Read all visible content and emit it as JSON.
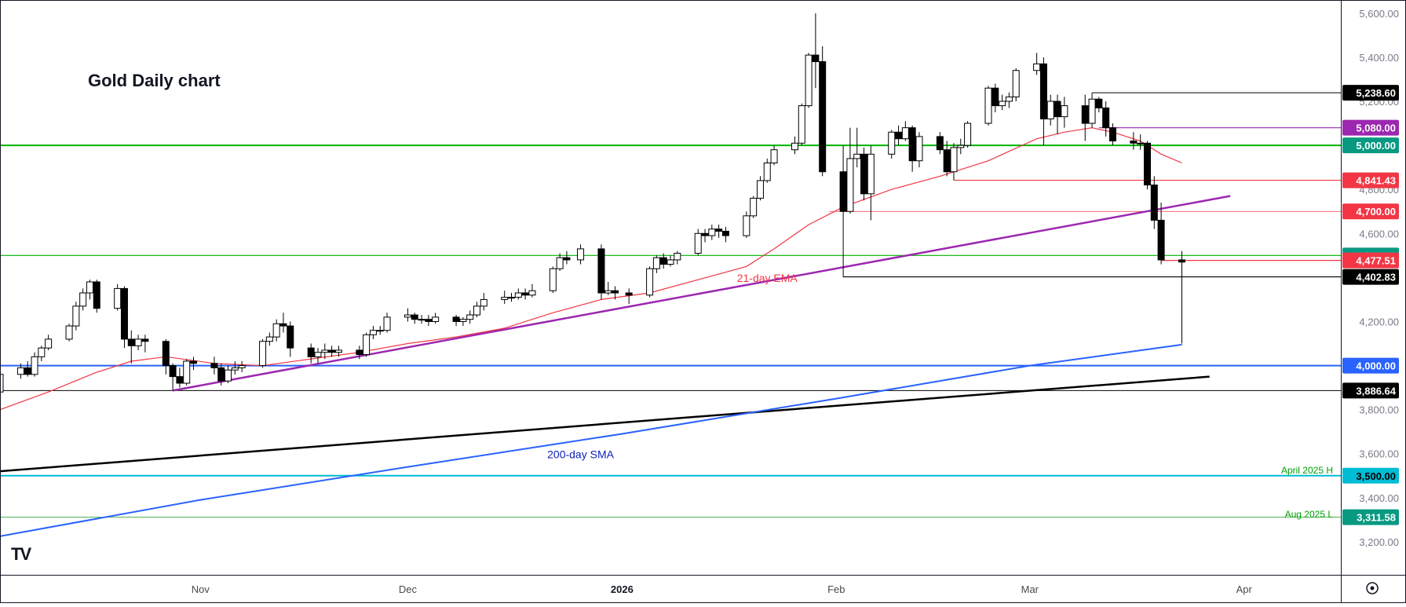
{
  "chart_data": {
    "type": "candlestick",
    "title": "Gold Daily chart",
    "y_axis": {
      "position": "right",
      "ylim": [
        3050,
        5660
      ],
      "ticks": [
        {
          "value": 3200,
          "label": "3,200.00"
        },
        {
          "value": 3400,
          "label": "3,400.00"
        },
        {
          "value": 3600,
          "label": "3,600.00"
        },
        {
          "value": 3800,
          "label": "3,800.00"
        },
        {
          "value": 4000,
          "label": "4,000.00"
        },
        {
          "value": 4200,
          "label": "4,200.00"
        },
        {
          "value": 4400,
          "label": "4,400.00"
        },
        {
          "value": 4600,
          "label": "4,600.00"
        },
        {
          "value": 4800,
          "label": "4,800.00"
        },
        {
          "value": 5000,
          "label": "5,000.00"
        },
        {
          "value": 5200,
          "label": "5,200.00"
        },
        {
          "value": 5400,
          "label": "5,400.00"
        },
        {
          "value": 5600,
          "label": "5,600.00"
        }
      ]
    },
    "x_axis": {
      "xlim": [
        "2025-10-03",
        "2026-04-15"
      ],
      "ticks": [
        {
          "date": "2025-11-01",
          "label": "Nov",
          "bold": false
        },
        {
          "date": "2025-12-01",
          "label": "Dec",
          "bold": false
        },
        {
          "date": "2026-01-01",
          "label": "2026",
          "bold": true
        },
        {
          "date": "2026-02-01",
          "label": "Feb",
          "bold": false
        },
        {
          "date": "2026-03-01",
          "label": "Mar",
          "bold": false
        },
        {
          "date": "2026-04-01",
          "label": "Apr",
          "bold": false
        }
      ]
    },
    "grid": false,
    "legend": "none",
    "candles": [
      [
        "2025-10-03",
        3880,
        3960,
        3870,
        3985
      ],
      [
        "2025-10-06",
        3960,
        3990,
        3940,
        4010
      ],
      [
        "2025-10-07",
        3990,
        3960,
        3950,
        4020
      ],
      [
        "2025-10-08",
        3960,
        4040,
        3950,
        4060
      ],
      [
        "2025-10-09",
        4040,
        4080,
        4020,
        4090
      ],
      [
        "2025-10-10",
        4080,
        4120,
        4070,
        4140
      ],
      [
        "2025-10-13",
        4120,
        4180,
        4110,
        4190
      ],
      [
        "2025-10-14",
        4180,
        4270,
        4160,
        4290
      ],
      [
        "2025-10-15",
        4270,
        4330,
        4250,
        4350
      ],
      [
        "2025-10-16",
        4330,
        4380,
        4300,
        4390
      ],
      [
        "2025-10-17",
        4380,
        4260,
        4240,
        4390
      ],
      [
        "2025-10-20",
        4260,
        4350,
        4250,
        4370
      ],
      [
        "2025-10-21",
        4350,
        4120,
        4080,
        4360
      ],
      [
        "2025-10-22",
        4120,
        4090,
        4010,
        4160
      ],
      [
        "2025-10-23",
        4090,
        4120,
        4070,
        4140
      ],
      [
        "2025-10-24",
        4120,
        4110,
        4060,
        4140
      ],
      [
        "2025-10-27",
        4110,
        4000,
        3960,
        4120
      ],
      [
        "2025-10-28",
        4000,
        3950,
        3886,
        4010
      ],
      [
        "2025-10-29",
        3950,
        3920,
        3900,
        3990
      ],
      [
        "2025-10-30",
        3920,
        4020,
        3910,
        4030
      ],
      [
        "2025-10-31",
        4020,
        4010,
        3980,
        4040
      ],
      [
        "2025-11-03",
        4010,
        3990,
        3960,
        4040
      ],
      [
        "2025-11-04",
        3990,
        3930,
        3910,
        4010
      ],
      [
        "2025-11-05",
        3930,
        3980,
        3920,
        4000
      ],
      [
        "2025-11-06",
        3980,
        3990,
        3960,
        4020
      ],
      [
        "2025-11-07",
        3990,
        4000,
        3970,
        4020
      ],
      [
        "2025-11-10",
        4000,
        4110,
        3990,
        4120
      ],
      [
        "2025-11-11",
        4110,
        4130,
        4090,
        4150
      ],
      [
        "2025-11-12",
        4130,
        4190,
        4110,
        4210
      ],
      [
        "2025-11-13",
        4190,
        4180,
        4150,
        4240
      ],
      [
        "2025-11-14",
        4180,
        4080,
        4040,
        4200
      ],
      [
        "2025-11-17",
        4080,
        4040,
        4010,
        4100
      ],
      [
        "2025-11-18",
        4040,
        4060,
        4010,
        4080
      ],
      [
        "2025-11-19",
        4060,
        4070,
        4030,
        4100
      ],
      [
        "2025-11-20",
        4070,
        4060,
        4040,
        4090
      ],
      [
        "2025-11-21",
        4060,
        4070,
        4040,
        4090
      ],
      [
        "2025-11-24",
        4070,
        4050,
        4030,
        4090
      ],
      [
        "2025-11-25",
        4050,
        4140,
        4040,
        4150
      ],
      [
        "2025-11-26",
        4140,
        4160,
        4120,
        4180
      ],
      [
        "2025-11-27",
        4160,
        4160,
        4140,
        4180
      ],
      [
        "2025-11-28",
        4160,
        4220,
        4150,
        4240
      ],
      [
        "2025-12-01",
        4220,
        4230,
        4200,
        4260
      ],
      [
        "2025-12-02",
        4230,
        4210,
        4190,
        4240
      ],
      [
        "2025-12-03",
        4210,
        4210,
        4190,
        4230
      ],
      [
        "2025-12-04",
        4210,
        4200,
        4180,
        4230
      ],
      [
        "2025-12-05",
        4200,
        4220,
        4190,
        4240
      ],
      [
        "2025-12-08",
        4220,
        4200,
        4180,
        4230
      ],
      [
        "2025-12-09",
        4200,
        4210,
        4180,
        4220
      ],
      [
        "2025-12-10",
        4210,
        4230,
        4190,
        4250
      ],
      [
        "2025-12-11",
        4230,
        4270,
        4220,
        4290
      ],
      [
        "2025-12-12",
        4270,
        4300,
        4250,
        4330
      ],
      [
        "2025-12-15",
        4300,
        4310,
        4280,
        4340
      ],
      [
        "2025-12-16",
        4310,
        4310,
        4290,
        4330
      ],
      [
        "2025-12-17",
        4310,
        4330,
        4300,
        4350
      ],
      [
        "2025-12-18",
        4330,
        4320,
        4300,
        4350
      ],
      [
        "2025-12-19",
        4320,
        4340,
        4310,
        4370
      ],
      [
        "2025-12-22",
        4340,
        4440,
        4330,
        4450
      ],
      [
        "2025-12-23",
        4440,
        4490,
        4430,
        4510
      ],
      [
        "2025-12-24",
        4490,
        4480,
        4460,
        4520
      ],
      [
        "2025-12-26",
        4480,
        4530,
        4460,
        4550
      ],
      [
        "2025-12-29",
        4530,
        4330,
        4300,
        4550
      ],
      [
        "2025-12-30",
        4330,
        4340,
        4320,
        4380
      ],
      [
        "2025-12-31",
        4340,
        4330,
        4300,
        4360
      ],
      [
        "2026-01-02",
        4330,
        4320,
        4280,
        4350
      ],
      [
        "2026-01-05",
        4320,
        4440,
        4310,
        4450
      ],
      [
        "2026-01-06",
        4440,
        4490,
        4420,
        4500
      ],
      [
        "2026-01-07",
        4490,
        4460,
        4440,
        4510
      ],
      [
        "2026-01-08",
        4460,
        4480,
        4450,
        4500
      ],
      [
        "2026-01-09",
        4480,
        4510,
        4460,
        4520
      ],
      [
        "2026-01-12",
        4510,
        4600,
        4500,
        4620
      ],
      [
        "2026-01-13",
        4600,
        4590,
        4560,
        4620
      ],
      [
        "2026-01-14",
        4590,
        4620,
        4570,
        4640
      ],
      [
        "2026-01-15",
        4620,
        4610,
        4580,
        4640
      ],
      [
        "2026-01-16",
        4610,
        4590,
        4560,
        4630
      ],
      [
        "2026-01-19",
        4590,
        4680,
        4580,
        4700
      ],
      [
        "2026-01-20",
        4680,
        4760,
        4670,
        4770
      ],
      [
        "2026-01-21",
        4760,
        4840,
        4750,
        4860
      ],
      [
        "2026-01-22",
        4840,
        4920,
        4830,
        4940
      ],
      [
        "2026-01-23",
        4920,
        4980,
        4910,
        5000
      ],
      [
        "2026-01-26",
        4980,
        5010,
        4960,
        5040
      ],
      [
        "2026-01-27",
        5010,
        5180,
        5000,
        5190
      ],
      [
        "2026-01-28",
        5180,
        5410,
        5170,
        5420
      ],
      [
        "2026-01-29",
        5410,
        5380,
        5260,
        5600
      ],
      [
        "2026-01-30",
        5380,
        4880,
        4860,
        5450
      ],
      [
        "2026-02-02",
        4880,
        4700,
        4402,
        5000
      ],
      [
        "2026-02-03",
        4700,
        4940,
        4690,
        5080
      ],
      [
        "2026-02-04",
        4940,
        4960,
        4900,
        5080
      ],
      [
        "2026-02-05",
        4960,
        4780,
        4750,
        4990
      ],
      [
        "2026-02-06",
        4780,
        4960,
        4660,
        5000
      ],
      [
        "2026-02-09",
        4960,
        5060,
        4940,
        5070
      ],
      [
        "2026-02-10",
        5060,
        5030,
        5000,
        5090
      ],
      [
        "2026-02-11",
        5030,
        5080,
        5020,
        5110
      ],
      [
        "2026-02-12",
        5080,
        4930,
        4880,
        5090
      ],
      [
        "2026-02-13",
        4930,
        5040,
        4900,
        5060
      ],
      [
        "2026-02-16",
        5040,
        4980,
        4960,
        5060
      ],
      [
        "2026-02-17",
        4980,
        4880,
        4860,
        5020
      ],
      [
        "2026-02-18",
        4880,
        4990,
        4841,
        5010
      ],
      [
        "2026-02-19",
        4990,
        5000,
        4960,
        5030
      ],
      [
        "2026-02-20",
        5000,
        5100,
        4990,
        5110
      ],
      [
        "2026-02-23",
        5100,
        5260,
        5090,
        5270
      ],
      [
        "2026-02-24",
        5260,
        5180,
        5150,
        5280
      ],
      [
        "2026-02-25",
        5180,
        5200,
        5160,
        5230
      ],
      [
        "2026-02-26",
        5200,
        5220,
        5170,
        5240
      ],
      [
        "2026-02-27",
        5220,
        5340,
        5200,
        5350
      ],
      [
        "2026-03-02",
        5340,
        5370,
        5320,
        5420
      ],
      [
        "2026-03-03",
        5370,
        5120,
        5000,
        5400
      ],
      [
        "2026-03-04",
        5120,
        5200,
        5090,
        5230
      ],
      [
        "2026-03-05",
        5200,
        5130,
        5050,
        5230
      ],
      [
        "2026-03-06",
        5130,
        5180,
        5080,
        5220
      ],
      [
        "2026-03-09",
        5180,
        5100,
        5020,
        5230
      ],
      [
        "2026-03-10",
        5100,
        5210,
        5080,
        5238
      ],
      [
        "2026-03-11",
        5210,
        5170,
        5150,
        5220
      ],
      [
        "2026-03-12",
        5170,
        5080,
        5040,
        5200
      ],
      [
        "2026-03-13",
        5080,
        5020,
        5000,
        5100
      ],
      [
        "2026-03-16",
        5020,
        5010,
        4980,
        5060
      ],
      [
        "2026-03-17",
        5010,
        5010,
        4980,
        5050
      ],
      [
        "2026-03-18",
        5010,
        4820,
        4800,
        5020
      ],
      [
        "2026-03-19",
        4820,
        4660,
        4620,
        4860
      ],
      [
        "2026-03-20",
        4660,
        4480,
        4460,
        4740
      ],
      [
        "2026-03-23",
        4480,
        4470,
        4100,
        4520
      ]
    ],
    "series": [
      {
        "name": "21-day EMA",
        "color": "#f23645",
        "x": [
          "2025-10-03",
          "2025-10-10",
          "2025-10-17",
          "2025-10-22",
          "2025-10-27",
          "2025-11-03",
          "2025-11-10",
          "2025-11-17",
          "2025-11-24",
          "2025-12-01",
          "2025-12-08",
          "2025-12-15",
          "2025-12-22",
          "2025-12-29",
          "2026-01-05",
          "2026-01-12",
          "2026-01-19",
          "2026-01-23",
          "2026-01-28",
          "2026-02-02",
          "2026-02-09",
          "2026-02-16",
          "2026-02-23",
          "2026-03-02",
          "2026-03-06",
          "2026-03-10",
          "2026-03-13",
          "2026-03-17",
          "2026-03-20",
          "2026-03-23"
        ],
        "values": [
          3800,
          3880,
          3970,
          4020,
          4040,
          4010,
          4000,
          4030,
          4060,
          4100,
          4130,
          4170,
          4240,
          4300,
          4330,
          4390,
          4450,
          4530,
          4640,
          4720,
          4800,
          4860,
          4930,
          5030,
          5060,
          5080,
          5060,
          5020,
          4960,
          4920
        ]
      },
      {
        "name": "200-day SMA",
        "color": "#2962ff",
        "x": [
          "2025-10-03",
          "2025-11-01",
          "2025-12-01",
          "2026-01-01",
          "2026-02-01",
          "2026-03-01",
          "2026-03-23"
        ],
        "values": [
          3225,
          3390,
          3540,
          3690,
          3850,
          4000,
          4095
        ]
      }
    ],
    "trendlines": [
      {
        "from": [
          "2025-10-28",
          3886.64
        ],
        "to": [
          "2026-03-30",
          4770
        ],
        "color": "#9c27b0"
      },
      {
        "from": [
          "2025-10-03",
          3520
        ],
        "to": [
          "2026-03-27",
          3950
        ],
        "color": "#000000"
      }
    ],
    "levels": [
      {
        "value": 5238.6,
        "label": "5,238.60",
        "bg": "#000000",
        "fg": "#ffffff",
        "line": "#000000",
        "lw": 1,
        "from": "2026-03-10"
      },
      {
        "value": 5080.0,
        "label": "5,080.00",
        "bg": "#9c27b0",
        "fg": "#ffffff",
        "line": "#9c27b0",
        "lw": 1.2,
        "from": "2026-03-11"
      },
      {
        "value": 5000.0,
        "label": "5,000.00",
        "bg": "#089981",
        "fg": "#ffffff",
        "line": "#00b300",
        "lw": 2,
        "from": null
      },
      {
        "value": 4841.43,
        "label": "4,841.43",
        "bg": "#f23645",
        "fg": "#ffffff",
        "line": "#f23645",
        "lw": 1.2,
        "from": "2026-02-18"
      },
      {
        "value": 4700.0,
        "label": "4,700.00",
        "bg": "#f23645",
        "fg": "#ffffff",
        "line": "#f23645",
        "lw": 0.8,
        "from": "2026-01-31"
      },
      {
        "value": 4500.0,
        "label": "4,500.00",
        "bg": "#089981",
        "fg": "#ffffff",
        "line": "#00b300",
        "lw": 1.2,
        "from": null
      },
      {
        "value": 4477.51,
        "label": "4,477.51",
        "bg": "#f23645",
        "fg": "#ffffff",
        "line": "#f23645",
        "lw": 1.2,
        "from": "2026-03-20"
      },
      {
        "value": 4402.83,
        "label": "4,402.83",
        "bg": "#000000",
        "fg": "#ffffff",
        "line": "#000000",
        "lw": 1.2,
        "from": "2026-02-02"
      },
      {
        "value": 4000.0,
        "label": "4,000.00",
        "bg": "#2962ff",
        "fg": "#ffffff",
        "line": "#2962ff",
        "lw": 2,
        "from": null
      },
      {
        "value": 3886.64,
        "label": "3,886.64",
        "bg": "#000000",
        "fg": "#ffffff",
        "line": "#000000",
        "lw": 1,
        "from": null
      },
      {
        "value": 3500.0,
        "label": "3,500.00",
        "bg": "#00bcd4",
        "fg": "#000000",
        "line": "#00bcd4",
        "lw": 2,
        "from": null
      },
      {
        "value": 3311.58,
        "label": "3,311.58",
        "bg": "#089981",
        "fg": "#ffffff",
        "line": "#4caf50",
        "lw": 1,
        "from": null
      }
    ],
    "annotations": [
      {
        "text": "21-day EMA",
        "date": "2026-01-22",
        "value": 4380,
        "color": "#f23645",
        "size": 14
      },
      {
        "text": "200-day SMA",
        "date": "2025-12-26",
        "value": 3580,
        "color": "#0d1fb5",
        "size": 14
      },
      {
        "text": "April 2025 H",
        "date": null,
        "value": 3510,
        "color": "#00a000",
        "size": 12
      },
      {
        "text": "Aug 2025 L",
        "date": null,
        "value": 3310,
        "color": "#00a000",
        "size": 12
      }
    ]
  },
  "logo_text": "TV"
}
